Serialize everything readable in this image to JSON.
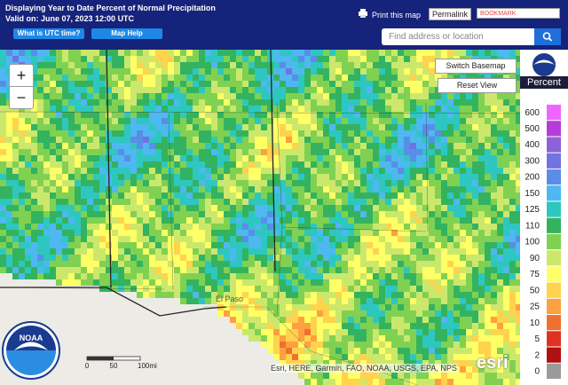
{
  "header": {
    "title": "Displaying Year to Date Percent of Normal Precipitation",
    "valid": "Valid on: June 07, 2023 12:00 UTC",
    "utc_button": "What is UTC time?",
    "help_button": "Map Help",
    "print": "Print this map",
    "permalink": "Permalink",
    "bookmark": "BOOKMARK",
    "search_placeholder": "Find address or location"
  },
  "map": {
    "zoom_in": "+",
    "zoom_out": "−",
    "switch_basemap": "Switch Basemap",
    "reset_view": "Reset View",
    "place_label": "El Paso",
    "scale_labels": [
      "0",
      "50",
      "100mi"
    ],
    "attribution": "Esri, HERE, Garmin, FAO, NOAA, USGS, EPA, NPS",
    "esri": "esri",
    "help": "?",
    "noaa": "NOAA"
  },
  "legend": {
    "title": "Percent",
    "items": [
      {
        "label": 600,
        "color": "#ee66ff"
      },
      {
        "label": 500,
        "color": "#b53cd8"
      },
      {
        "label": 400,
        "color": "#8c62d8"
      },
      {
        "label": 300,
        "color": "#7272e2"
      },
      {
        "label": 200,
        "color": "#5a8de8"
      },
      {
        "label": 150,
        "color": "#4eb8f0"
      },
      {
        "label": 125,
        "color": "#2ec7c0"
      },
      {
        "label": 110,
        "color": "#33b35f"
      },
      {
        "label": 100,
        "color": "#80d152"
      },
      {
        "label": 90,
        "color": "#cbe86c"
      },
      {
        "label": 75,
        "color": "#ffff66"
      },
      {
        "label": 50,
        "color": "#ffd34d"
      },
      {
        "label": 25,
        "color": "#ffa040"
      },
      {
        "label": 10,
        "color": "#f07030"
      },
      {
        "label": 5,
        "color": "#e03020"
      },
      {
        "label": 2,
        "color": "#b01010"
      },
      {
        "label": 0,
        "color": "#9a9a9a"
      }
    ]
  }
}
